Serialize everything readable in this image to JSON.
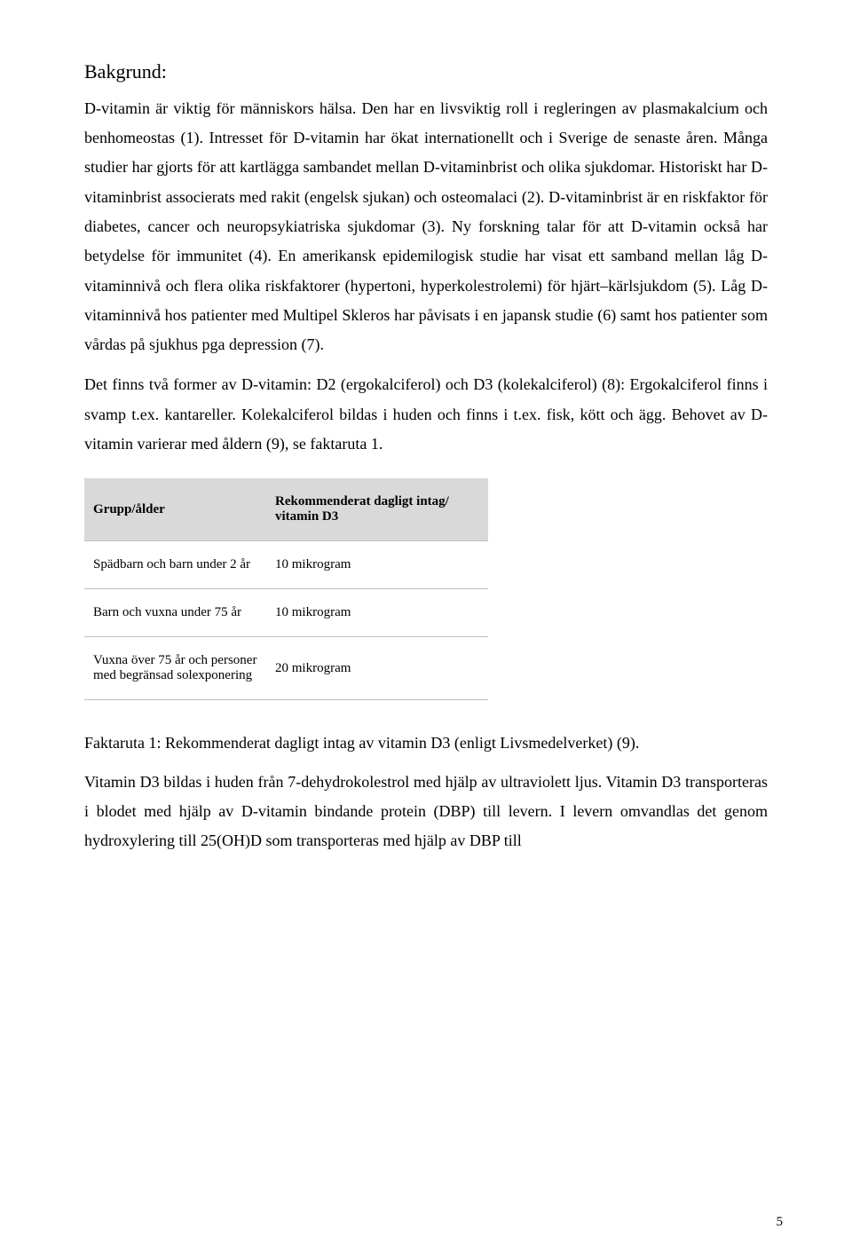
{
  "heading": "Bakgrund:",
  "para1": "D-vitamin är viktig för människors hälsa. Den har en livsviktig roll i regleringen av plasmakalcium och benhomeostas (1). Intresset för D-vitamin har ökat internationellt och i Sverige de senaste åren. Många studier har gjorts för att kartlägga sambandet mellan D-vitaminbrist och olika sjukdomar. Historiskt har D-vitaminbrist associerats med rakit (engelsk sjukan) och osteomalaci (2). D-vitaminbrist är en riskfaktor för diabetes, cancer och neuropsykiatriska sjukdomar (3). Ny forskning talar för att D-vitamin också har betydelse för immunitet (4). En amerikansk epidemilogisk studie har visat ett samband mellan låg D-vitaminnivå och flera olika riskfaktorer (hypertoni, hyperkolestrolemi) för hjärt–kärlsjukdom (5). Låg D-vitaminnivå hos patienter med Multipel Skleros har påvisats i en japansk studie (6) samt hos patienter som vårdas på sjukhus pga depression (7).",
  "para2": "Det finns två former av D-vitamin: D2 (ergokalciferol) och D3 (kolekalciferol) (8): Ergokalciferol finns i svamp t.ex. kantareller. Kolekalciferol bildas i huden och finns i t.ex. fisk, kött och ägg. Behovet av D-vitamin varierar med åldern (9), se faktaruta 1.",
  "table": {
    "header": {
      "col0": "Grupp/ålder",
      "col1_line1": "Rekommenderat dagligt intag/",
      "col1_line2": "vitamin D3"
    },
    "rows": [
      {
        "group": "Spädbarn och barn under 2 år",
        "intake": "10 mikrogram",
        "group2": ""
      },
      {
        "group": "Barn och vuxna under 75 år",
        "intake": "10 mikrogram",
        "group2": ""
      },
      {
        "group": "Vuxna över 75 år och personer",
        "group2": "med begränsad solexponering",
        "intake": "20 mikrogram"
      }
    ]
  },
  "caption": "Faktaruta 1: Rekommenderat dagligt intag av vitamin D3 (enligt Livsmedelverket) (9).",
  "para3": "Vitamin D3 bildas i huden från 7-dehydrokolestrol med hjälp av ultraviolett ljus. Vitamin D3 transporteras i blodet med hjälp av D-vitamin bindande protein (DBP) till levern. I levern omvandlas det genom hydroxylering till 25(OH)D som transporteras med hjälp av DBP till",
  "pageNumber": "5"
}
